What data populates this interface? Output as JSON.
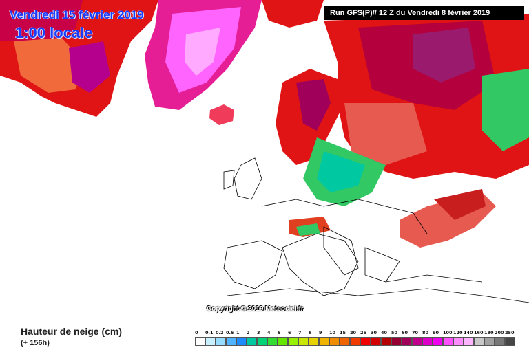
{
  "header": {
    "date_line": "Vendredi 15 février 2019",
    "time_line": "1:00 locale",
    "run_info": "Run GFS(P)// 12 Z du Vendredi 8 février 2019"
  },
  "map": {
    "copyright": "Copyright © 2019 Meteociel.fr"
  },
  "legend": {
    "title": "Hauteur de neige (cm)",
    "subtitle": "(+ 156h)",
    "ticks": [
      "0",
      "0.1",
      "0.2",
      "0.5",
      "1",
      "2",
      "3",
      "4",
      "5",
      "6",
      "7",
      "8",
      "9",
      "10",
      "15",
      "20",
      "25",
      "30",
      "40",
      "50",
      "60",
      "70",
      "80",
      "90",
      "100",
      "120",
      "140",
      "160",
      "180",
      "200",
      "250"
    ],
    "colors": [
      "#ffffff",
      "#c8f0ff",
      "#96dcff",
      "#50b4ff",
      "#1e8cff",
      "#00c8a0",
      "#00d278",
      "#32dc32",
      "#64e600",
      "#96f000",
      "#c8e600",
      "#e6d200",
      "#f0b400",
      "#f08c00",
      "#f06400",
      "#f03c00",
      "#f00000",
      "#d20000",
      "#b40000",
      "#960032",
      "#a0005a",
      "#be008c",
      "#dc00c8",
      "#f000f0",
      "#ff50ff",
      "#ff8cff",
      "#ffb4ff",
      "#c8c8c8",
      "#a0a0a0",
      "#787878",
      "#464646"
    ]
  }
}
